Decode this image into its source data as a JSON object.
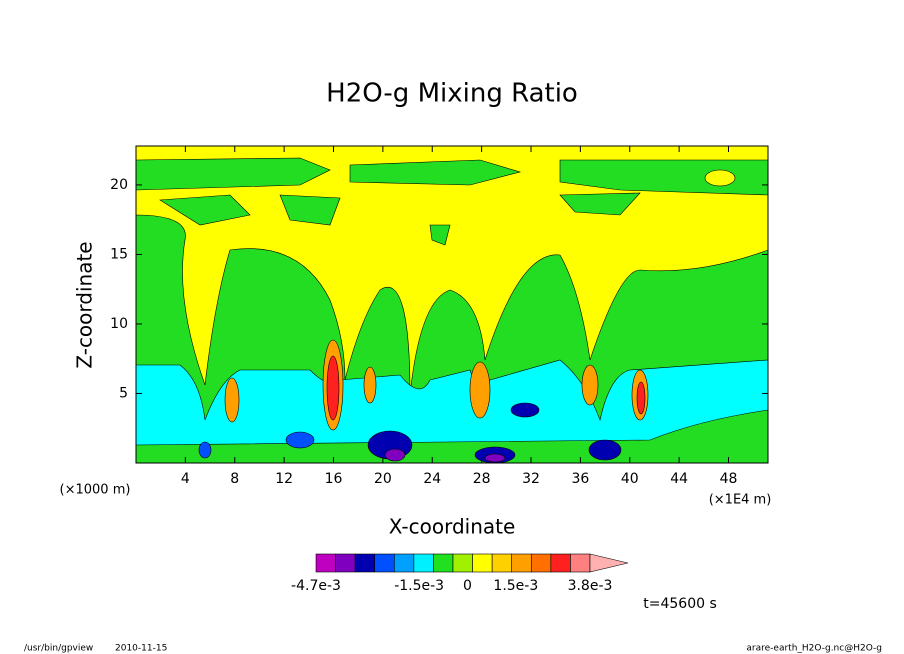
{
  "chart_data": {
    "type": "contour",
    "title": "H2O-g Mixing Ratio",
    "x_label": "X-coordinate",
    "y_label": "Z-coordinate",
    "y_units": "(×1000 m)",
    "x_units": "(×1E4 m)",
    "xlim": [
      0,
      51.2
    ],
    "xticks": [
      4,
      8,
      12,
      16,
      20,
      24,
      28,
      32,
      36,
      40,
      44,
      48
    ],
    "ylim": [
      0,
      22.8
    ],
    "yticks": [
      5,
      10,
      15,
      20
    ],
    "colorbar": {
      "colors": [
        "#c000c0",
        "#8000c0",
        "#0000b0",
        "#0050ff",
        "#00a0ff",
        "#00f0ff",
        "#20e020",
        "#a0f000",
        "#ffff00",
        "#ffd000",
        "#ffa000",
        "#ff7000",
        "#ff2020",
        "#ff8080"
      ],
      "extend_color": "#ffb0b0",
      "clim": [
        -0.0047,
        0.0038
      ],
      "ticks": [
        {
          "value": -0.0047,
          "label": "-4.7e-3"
        },
        {
          "value": -0.0015,
          "label": "-1.5e-3"
        },
        0,
        {
          "value": 0.0015,
          "label": "1.5e-3"
        },
        {
          "value": 0.0038,
          "label": "3.8e-3"
        }
      ]
    },
    "time_label": "t=45600 s",
    "footer_program": "/usr/bin/gpview",
    "footer_date": "2010-11-15",
    "footer_file": "arare-earth_H2O-g.nc@H2O-g"
  }
}
